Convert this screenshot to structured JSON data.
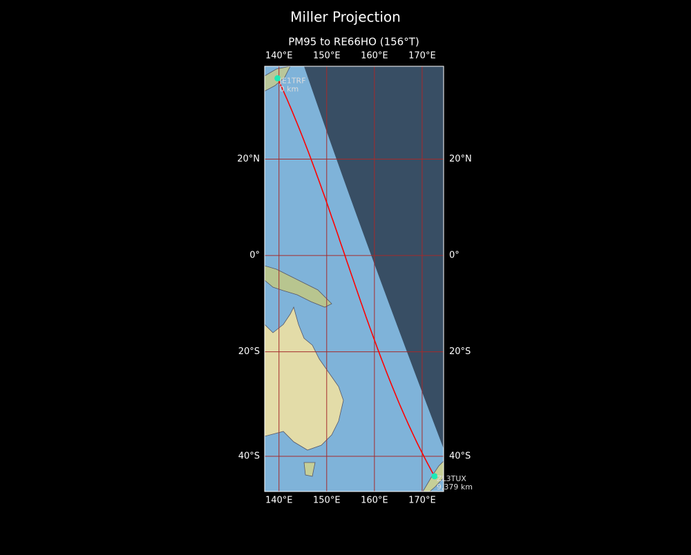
{
  "title": "Miller Projection",
  "subtitle": "PM95 to RE66HO (156°T)",
  "map": {
    "projection": "miller",
    "lonlim": [
      137,
      174.5
    ],
    "latlim": [
      -46.1,
      37.9
    ],
    "lonticks": [
      {
        "value": 140,
        "label": "140°E"
      },
      {
        "value": 150,
        "label": "150°E"
      },
      {
        "value": 160,
        "label": "160°E"
      },
      {
        "value": 170,
        "label": "170°E"
      }
    ],
    "latticks": [
      {
        "value": 20,
        "label": "20°N"
      },
      {
        "value": 0,
        "label": "0°"
      },
      {
        "value": -20,
        "label": "20°S"
      },
      {
        "value": -40,
        "label": "40°S"
      }
    ],
    "grid_color": "#a52a2a",
    "path_color": "#ff0000",
    "marker_color": "#1de9b6"
  },
  "stations": [
    {
      "name": "JE1TRF",
      "distance": "0 km",
      "lon": 139.7,
      "lat": 35.7
    },
    {
      "name": "ZL3TUX",
      "distance": "9,379 km",
      "lon": 172.6,
      "lat": -43.5
    }
  ]
}
